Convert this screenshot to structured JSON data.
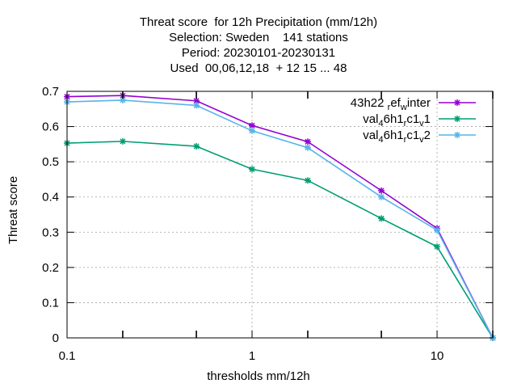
{
  "chart_data": {
    "type": "line",
    "title_lines": [
      "Threat score  for 12h Precipitation (mm/12h)",
      "Selection: Sweden    141 stations",
      "Period: 20230101-20230131",
      "Used  00,06,12,18  + 12 15 ... 48"
    ],
    "xlabel": "thresholds mm/12h",
    "ylabel": "Threat score",
    "x_scale": "log",
    "xlim": [
      0.1,
      20
    ],
    "ylim": [
      0,
      0.7
    ],
    "x_ticks": [
      0.1,
      1,
      10
    ],
    "x_tick_labels": [
      "0.1",
      "1",
      "10"
    ],
    "x_minor_ticks": [
      0.2,
      0.5,
      2,
      5,
      20
    ],
    "y_ticks": [
      0,
      0.1,
      0.2,
      0.3,
      0.4,
      0.5,
      0.6,
      0.7
    ],
    "y_tick_labels": [
      "0",
      "0.1",
      "0.2",
      "0.3",
      "0.4",
      "0.5",
      "0.6",
      "0.7"
    ],
    "grid": true,
    "legend_position": "top-right",
    "x": [
      0.1,
      0.2,
      0.5,
      1,
      2,
      5,
      10,
      20
    ],
    "series": [
      {
        "name": "43h22 ref winter",
        "label_base": [
          "43h22 ",
          "r",
          "ef",
          "w",
          "inter"
        ],
        "color": "#9400d3",
        "values": [
          0.685,
          0.688,
          0.673,
          0.603,
          0.557,
          0.418,
          0.311,
          0.0
        ]
      },
      {
        "name": "val 46h1 rc1 v1",
        "label_base": [
          "val",
          "4",
          "6h1",
          "r",
          "c1",
          "v",
          "1"
        ],
        "color": "#009e73",
        "values": [
          0.553,
          0.558,
          0.544,
          0.479,
          0.447,
          0.339,
          0.259,
          0.0
        ]
      },
      {
        "name": "val 46h1 rc1 v2",
        "label_base": [
          "val",
          "4",
          "6h1",
          "r",
          "c1",
          "v",
          "2"
        ],
        "color": "#56b4e9",
        "values": [
          0.67,
          0.675,
          0.66,
          0.588,
          0.54,
          0.4,
          0.306,
          0.0
        ]
      }
    ]
  }
}
